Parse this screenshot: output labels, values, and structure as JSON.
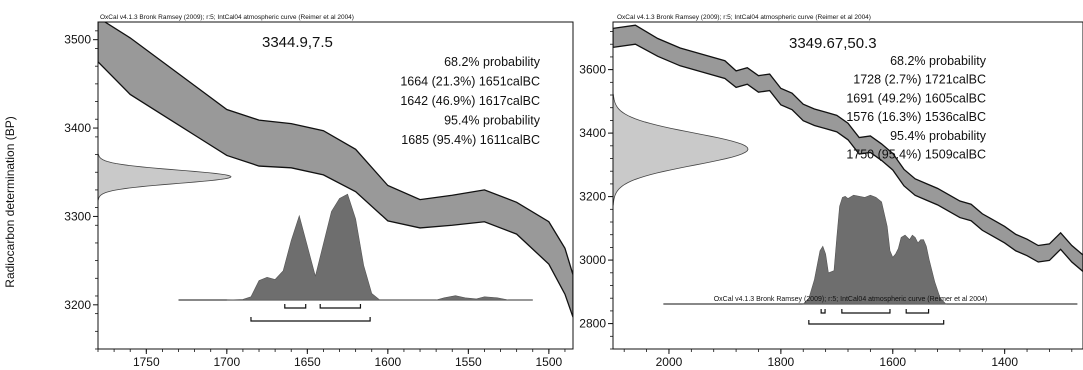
{
  "colors": {
    "band": "#999999",
    "band_stroke": "#111111",
    "dist": "#6e6e6e",
    "radio": "#c9c9c9",
    "frame": "#111111"
  },
  "ylabel": "Radiocarbon determination (BP)",
  "chart_data": [
    {
      "type": "area",
      "header": "OxCal v4.1.3 Bronk Ramsey (2009); r:5; IntCal04 atmospheric curve (Reimer et al 2004)",
      "measurement": "3344.9,7.5",
      "lines": [
        "68.2% probability",
        "1664 (21.3%) 1651calBC",
        "1642 (46.9%) 1617calBC",
        "95.4% probability",
        "1685 (95.4%) 1611calBC"
      ],
      "xlim": [
        1780,
        1485
      ],
      "ylim": [
        3150,
        3520
      ],
      "xticks": [
        1750,
        1700,
        1650,
        1600,
        1550,
        1500
      ],
      "yticks": [
        3200,
        3300,
        3400,
        3500
      ],
      "curve_x": [
        1780,
        1760,
        1740,
        1720,
        1700,
        1680,
        1660,
        1640,
        1620,
        1600,
        1580,
        1560,
        1540,
        1520,
        1500,
        1490,
        1485
      ],
      "curve_y": [
        3500,
        3470,
        3445,
        3420,
        3395,
        3383,
        3380,
        3372,
        3352,
        3315,
        3303,
        3307,
        3312,
        3298,
        3270,
        3238,
        3210
      ],
      "curve_width": [
        25,
        32,
        30,
        28,
        26,
        26,
        25,
        25,
        24,
        20,
        16,
        17,
        18,
        18,
        24,
        26,
        24
      ],
      "radio_sigma": 7.5,
      "radio_mean": 3344.9,
      "dist_x": [
        1700,
        1690,
        1685,
        1680,
        1675,
        1670,
        1665,
        1660,
        1655,
        1650,
        1645,
        1640,
        1635,
        1630,
        1625,
        1620,
        1615,
        1610,
        1605,
        1570,
        1565,
        1558,
        1552,
        1545,
        1540,
        1532,
        1525,
        1510
      ],
      "dist_y": [
        0,
        0.005,
        0.03,
        0.18,
        0.21,
        0.19,
        0.27,
        0.55,
        0.78,
        0.5,
        0.22,
        0.52,
        0.82,
        0.94,
        0.98,
        0.75,
        0.32,
        0.06,
        0,
        0,
        0.02,
        0.04,
        0.02,
        0.01,
        0.03,
        0.02,
        0,
        0
      ],
      "dist_baseline_x": [
        1730,
        1510
      ],
      "ranges_68": [
        [
          1664,
          1651
        ],
        [
          1642,
          1617
        ]
      ],
      "ranges_95": [
        [
          1685,
          1611
        ]
      ]
    },
    {
      "type": "area",
      "header": "OxCal v4.1.3 Bronk Ramsey (2009); r:5; IntCal04 atmospheric curve (Reimer et al 2004)",
      "inner_header": "OxCal v4.1.3 Bronk Ramsey (2009); r:5; IntCal04 atmospheric curve (Reimer et al 2004)",
      "measurement": "3349.67,50.3",
      "lines": [
        "68.2% probability",
        "1728 (2.7%) 1721calBC",
        "1691 (49.2%) 1605calBC",
        "1576 (16.3%) 1536calBC",
        "95.4% probability",
        "1750 (95.4%) 1509calBC"
      ],
      "xlim": [
        2100,
        1260
      ],
      "ylim": [
        2720,
        3750
      ],
      "xticks": [
        2000,
        1800,
        1600,
        1400
      ],
      "yticks": [
        2800,
        3000,
        3200,
        3400,
        3600
      ],
      "curve_x": [
        2100,
        2060,
        2020,
        1980,
        1940,
        1900,
        1880,
        1860,
        1840,
        1820,
        1800,
        1780,
        1760,
        1740,
        1720,
        1700,
        1680,
        1660,
        1640,
        1620,
        1600,
        1580,
        1560,
        1540,
        1520,
        1500,
        1480,
        1460,
        1440,
        1420,
        1400,
        1380,
        1360,
        1340,
        1320,
        1300,
        1280,
        1260
      ],
      "curve_y": [
        3700,
        3710,
        3670,
        3640,
        3620,
        3600,
        3570,
        3580,
        3555,
        3560,
        3515,
        3500,
        3465,
        3450,
        3440,
        3430,
        3405,
        3360,
        3365,
        3340,
        3310,
        3260,
        3230,
        3215,
        3200,
        3180,
        3160,
        3150,
        3120,
        3100,
        3080,
        3055,
        3040,
        3020,
        3025,
        3060,
        3020,
        2990
      ],
      "curve_width": [
        30,
        30,
        28,
        28,
        28,
        28,
        26,
        26,
        26,
        26,
        26,
        26,
        26,
        26,
        26,
        26,
        26,
        26,
        26,
        26,
        26,
        26,
        26,
        26,
        26,
        26,
        26,
        26,
        26,
        26,
        26,
        26,
        26,
        26,
        26,
        26,
        26,
        26
      ],
      "radio_sigma": 50.3,
      "radio_mean": 3349.67,
      "dist_x": [
        1760,
        1750,
        1740,
        1730,
        1725,
        1720,
        1715,
        1705,
        1700,
        1695,
        1690,
        1685,
        1680,
        1670,
        1660,
        1650,
        1640,
        1630,
        1620,
        1610,
        1605,
        1600,
        1595,
        1590,
        1585,
        1578,
        1570,
        1565,
        1560,
        1555,
        1550,
        1545,
        1540,
        1535,
        1525,
        1515,
        1505
      ],
      "dist_y": [
        0,
        0.05,
        0.22,
        0.48,
        0.52,
        0.45,
        0.28,
        0.3,
        0.6,
        0.88,
        0.96,
        0.97,
        0.95,
        0.98,
        0.97,
        0.96,
        0.98,
        0.96,
        0.92,
        0.7,
        0.48,
        0.42,
        0.45,
        0.5,
        0.6,
        0.62,
        0.58,
        0.62,
        0.6,
        0.55,
        0.58,
        0.58,
        0.52,
        0.4,
        0.2,
        0.05,
        0
      ],
      "dist_baseline_x": [
        2010,
        1270
      ],
      "ranges_68": [
        [
          1728,
          1721
        ],
        [
          1691,
          1605
        ],
        [
          1576,
          1536
        ]
      ],
      "ranges_95": [
        [
          1750,
          1509
        ]
      ]
    }
  ]
}
